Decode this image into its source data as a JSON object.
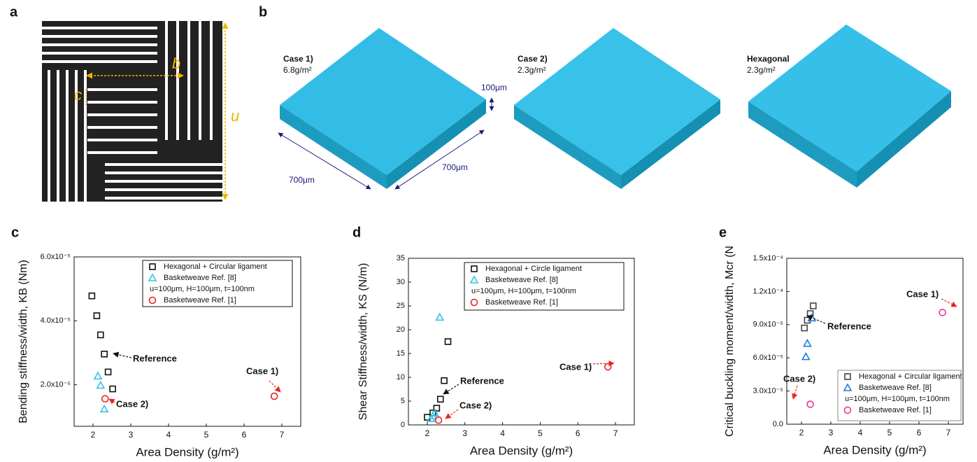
{
  "panel_a": {
    "label": "a",
    "b_label": "b",
    "c_label": "c",
    "u_label": "u"
  },
  "panel_b": {
    "label": "b",
    "case1_title": "Case 1)",
    "case1_density": "6.8g/m²",
    "case2_title": "Case 2)",
    "case2_density": "2.3g/m²",
    "hex_title": "Hexagonal",
    "hex_density": "2.3g/m²",
    "thickness": "100μm",
    "width_left": "700μm",
    "width_right": "700μm"
  },
  "chart_data": [
    {
      "type": "scatter",
      "label": "c",
      "xlabel": "Area Density (g/m²)",
      "ylabel": "Bending stiffness/width, KB (Nm)",
      "xlim": [
        1.5,
        7.5
      ],
      "xticks": [
        2,
        3,
        4,
        5,
        6,
        7
      ],
      "ylim": [
        7e-06,
        6e-05
      ],
      "yticks": [
        {
          "value": 2e-05,
          "label": "2.0x10⁻⁵"
        },
        {
          "value": 4e-05,
          "label": "4.0x10⁻⁵"
        },
        {
          "value": 6e-05,
          "label": "6.0x10⁻⁵"
        }
      ],
      "series": [
        {
          "name": "Hexagonal + Circular ligament",
          "color": "#111111",
          "marker": "square",
          "x": [
            1.97,
            2.1,
            2.2,
            2.3,
            2.4,
            2.52
          ],
          "values": [
            4.78e-05,
            4.16e-05,
            3.56e-05,
            2.96e-05,
            2.4e-05,
            1.87e-05
          ]
        },
        {
          "name": "Basketweave Ref. [8]",
          "color": "#35c3e8",
          "marker": "triangle",
          "x": [
            2.13,
            2.2,
            2.3
          ],
          "values": [
            2.27e-05,
            1.98e-05,
            1.24e-05
          ]
        },
        {
          "name": "Basketweave Ref. [1]",
          "color": "#ee2222",
          "marker": "circle",
          "x": [
            2.32,
            6.8
          ],
          "values": [
            1.56e-05,
            1.64e-05
          ]
        }
      ],
      "legend_note": "u=100μm, H=100μm, t=100nm",
      "annotations": [
        "Reference",
        "Case 1)",
        "Case 2)"
      ]
    },
    {
      "type": "scatter",
      "label": "d",
      "xlabel": "Area Density (g/m²)",
      "ylabel": "Shear Stiffness/width, KS (N/m)",
      "xlim": [
        1.5,
        7.5
      ],
      "xticks": [
        2,
        3,
        4,
        5,
        6,
        7
      ],
      "ylim": [
        0,
        35
      ],
      "yticks": [
        0,
        5,
        10,
        15,
        20,
        25,
        30,
        35
      ],
      "series": [
        {
          "name": "Hexagonal + Circle ligament",
          "color": "#111111",
          "marker": "square",
          "x": [
            2.0,
            2.15,
            2.25,
            2.35,
            2.45,
            2.55
          ],
          "values": [
            1.6,
            2.5,
            3.5,
            5.4,
            9.3,
            17.5
          ]
        },
        {
          "name": "Basketweave Ref. [8]",
          "color": "#35c3e8",
          "marker": "triangle",
          "x": [
            2.1,
            2.15,
            2.2,
            2.33
          ],
          "values": [
            1.3,
            1.9,
            2.5,
            22.6
          ]
        },
        {
          "name": "Basketweave Ref. [1]",
          "color": "#ee2222",
          "marker": "circle",
          "x": [
            2.3,
            6.8
          ],
          "values": [
            1.0,
            12.2
          ]
        }
      ],
      "legend_note": "u=100μm, H=100μm, t=100nm",
      "annotations": [
        "Reference",
        "Case 1)",
        "Case 2)"
      ]
    },
    {
      "type": "scatter",
      "label": "e",
      "xlabel": "Area Density (g/m²)",
      "ylabel": "Critical buckling moment/width, Mcr (N",
      "xlim": [
        1.5,
        7.5
      ],
      "xticks": [
        2,
        3,
        4,
        5,
        6,
        7
      ],
      "ylim": [
        0,
        0.00015
      ],
      "yticks": [
        {
          "value": 0,
          "label": "0.0"
        },
        {
          "value": 3e-05,
          "label": "3.0x10⁻⁵"
        },
        {
          "value": 6e-05,
          "label": "6.0x10⁻⁵"
        },
        {
          "value": 9e-05,
          "label": "9.0x10⁻⁵"
        },
        {
          "value": 0.00012,
          "label": "1.2x10⁻⁴"
        },
        {
          "value": 0.00015,
          "label": "1.5x10⁻⁴"
        }
      ],
      "series": [
        {
          "name": "Hexagonal + Circular ligament",
          "color": "#444444",
          "marker": "square",
          "x": [
            2.1,
            2.2,
            2.3,
            2.4
          ],
          "values": [
            8.7e-05,
            9.4e-05,
            0.0001,
            0.000107
          ]
        },
        {
          "name": "Basketweave Ref. [8]",
          "color": "#2277dd",
          "marker": "triangle",
          "x": [
            2.35,
            2.2,
            2.15
          ],
          "values": [
            9.6e-05,
            7.3e-05,
            6.1e-05
          ]
        },
        {
          "name": "Basketweave Ref. [1]",
          "color": "#ee3399",
          "marker": "circle",
          "x": [
            2.3,
            6.8
          ],
          "values": [
            1.8e-05,
            0.000101
          ]
        }
      ],
      "legend_note": "u=100μm, H=100μm, t=100nm",
      "annotations": [
        "Reference",
        "Case 1)",
        "Case 2)"
      ]
    }
  ]
}
